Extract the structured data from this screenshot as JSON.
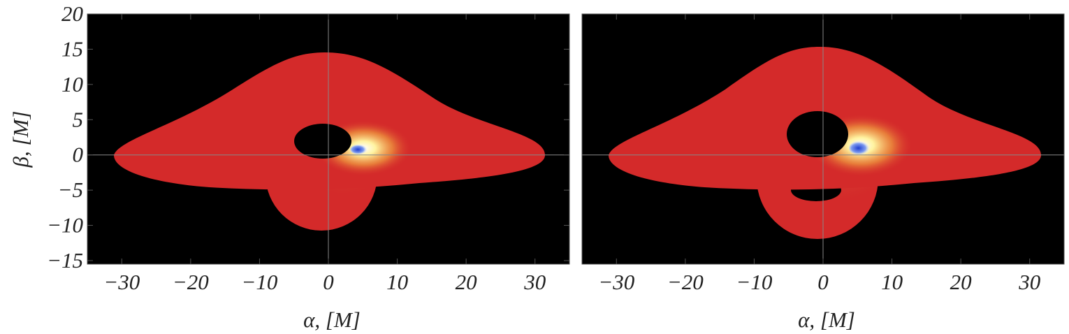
{
  "chart_data": [
    {
      "type": "image",
      "xlabel": "α, [M]",
      "ylabel": "β, [M]",
      "xlim": [
        -35,
        35
      ],
      "ylim": [
        -15.5,
        20
      ],
      "xticks": [
        {
          "value": -30,
          "label": "−30"
        },
        {
          "value": -20,
          "label": "−20"
        },
        {
          "value": -10,
          "label": "−10"
        },
        0,
        10,
        20,
        30
      ],
      "yticks": [
        {
          "value": -15,
          "label": "−15"
        },
        {
          "value": -10,
          "label": "−10"
        },
        {
          "value": -5,
          "label": "−5"
        },
        0,
        5,
        10,
        15,
        20
      ]
    },
    {
      "type": "image",
      "xlabel": "α, [M]",
      "xlim": [
        -35,
        35
      ],
      "ylim": [
        -15.5,
        20
      ],
      "xticks": [
        {
          "value": -30,
          "label": "−30"
        },
        {
          "value": -20,
          "label": "−20"
        },
        {
          "value": -10,
          "label": "−10"
        },
        0,
        10,
        20,
        30
      ]
    }
  ]
}
